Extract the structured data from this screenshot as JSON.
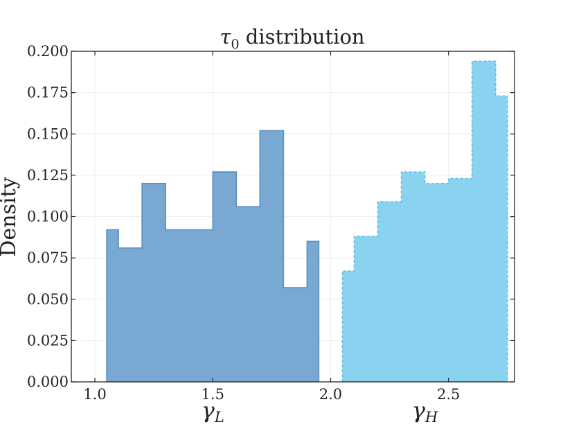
{
  "chart_data": {
    "type": "bar",
    "title": "τ0 distribution",
    "title_parts": {
      "symbol": "τ",
      "subscript": "0",
      "rest": " distribution"
    },
    "ylabel": "Density",
    "xlim": [
      0.9,
      2.78
    ],
    "ylim": [
      0,
      0.2
    ],
    "grid": true,
    "xticks": [
      1.0,
      1.5,
      2.0,
      2.5
    ],
    "xtick_labels": [
      "1.0",
      "1.5",
      "2.0",
      "2.5"
    ],
    "yticks": [
      0,
      0.025,
      0.05,
      0.075,
      0.1,
      0.125,
      0.15,
      0.175,
      0.2
    ],
    "ytick_labels": [
      "0.000",
      "0.025",
      "0.050",
      "0.075",
      "0.100",
      "0.125",
      "0.150",
      "0.175",
      "0.200"
    ],
    "group_labels": [
      {
        "symbol": "γ",
        "subscript": "L",
        "center": 1.5
      },
      {
        "symbol": "γ",
        "subscript": "H",
        "center": 2.4
      }
    ],
    "series": [
      {
        "bin_edges": [
          1.05,
          1.1,
          1.2,
          1.3,
          1.4,
          1.5,
          1.6,
          1.7,
          1.8,
          1.9,
          1.95
        ],
        "values": [
          0.092,
          0.081,
          0.12,
          0.092,
          0.092,
          0.127,
          0.106,
          0.152,
          0.057,
          0.085
        ],
        "fill": "#79a9d2",
        "stroke": "#5a8fc0",
        "dashed": false
      },
      {
        "bin_edges": [
          2.05,
          2.1,
          2.2,
          2.3,
          2.4,
          2.5,
          2.6,
          2.7,
          2.75
        ],
        "values": [
          0.067,
          0.088,
          0.109,
          0.127,
          0.12,
          0.123,
          0.194,
          0.173
        ],
        "fill": "#89d3f0",
        "stroke": "#5ebde5",
        "dashed": true
      }
    ]
  }
}
